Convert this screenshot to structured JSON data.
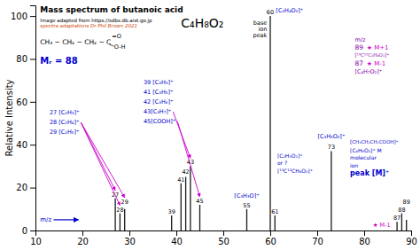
{
  "chart_data": {
    "type": "bar",
    "title": "Mass spectrum of butanoic acid",
    "ylabel": "Relative Intensity",
    "x": [
      27,
      28,
      29,
      39,
      41,
      42,
      43,
      45,
      55,
      60,
      61,
      73,
      87,
      88,
      89
    ],
    "values": [
      15,
      8,
      10,
      7,
      22,
      25,
      30,
      12,
      10,
      100,
      7,
      37,
      4,
      8,
      5
    ],
    "color": "#1a1a1a",
    "xlim": [
      10,
      90
    ],
    "ylim": [
      0,
      105
    ],
    "xticks": [
      10,
      20,
      30,
      40,
      50,
      60,
      70,
      80,
      90
    ],
    "yticks": [
      0,
      20,
      40,
      60,
      80,
      100
    ],
    "annotations": [
      {
        "text": "Image adapted from https://sdbs.db.aist.go.jp",
        "color": "black"
      },
      {
        "text": "spectra adaptations Dr Phil Brown 2021",
        "color": "#cc4400"
      },
      {
        "text": "C₄H₈O₂",
        "color": "black"
      },
      {
        "text": "CH₃ − CH₂ − CH₂ − C",
        "color": "black"
      },
      {
        "text": "=O",
        "color": "black"
      },
      {
        "text": "O-H",
        "color": "black"
      },
      {
        "text": "Mᵣ = 88",
        "color": "#0000cc"
      },
      {
        "text": "m/z",
        "color": "#0000cc"
      },
      {
        "text": "[C₂H₄O₂]⁺",
        "color": "#0000cc"
      },
      {
        "text": "base",
        "color": "black"
      },
      {
        "text": "ion",
        "color": "black"
      },
      {
        "text": "peak",
        "color": "black"
      },
      {
        "text": "27 [C₂H₃]⁺",
        "color": "#0000cc"
      },
      {
        "text": "28 [C₂H₄]⁺",
        "color": "#0000cc"
      },
      {
        "text": "29 [C₂H₅]⁺",
        "color": "#0000cc"
      },
      {
        "text": "39 [C₃H₃]⁺",
        "color": "#0000cc"
      },
      {
        "text": "41 [C₃H₅]⁺",
        "color": "#0000cc"
      },
      {
        "text": "42 [C₃H₆]⁺",
        "color": "#0000cc"
      },
      {
        "text": "43[C₃H₇]⁺",
        "color": "#0000cc"
      },
      {
        "text": "45[COOH]⁺",
        "color": "#0000cc"
      },
      {
        "text": "[C₃H₃O]⁺",
        "color": "#0000cc"
      },
      {
        "text": "[C₂H₅O₂]⁺",
        "color": "#0000cc"
      },
      {
        "text": "or ?",
        "color": "#0000cc"
      },
      {
        "text": "[¹³C¹²CH₄O₂]⁺",
        "color": "#0000cc"
      },
      {
        "text": "[C₃H₅O₂]⁺",
        "color": "#0000cc"
      },
      {
        "text": "m/z",
        "color": "#8800aa"
      },
      {
        "text": "89",
        "color": "#8800aa"
      },
      {
        "text": "★ M+1",
        "color": "#cc00cc"
      },
      {
        "text": "[¹³C¹²C₃H₈O₂]⁺",
        "color": "#8800aa"
      },
      {
        "text": "87",
        "color": "#8800aa"
      },
      {
        "text": "★ M-1",
        "color": "#cc00cc"
      },
      {
        "text": "[C₄H₇O₂]⁺",
        "color": "#8800aa"
      },
      {
        "text": "[CH₃CH₂CH₂COOH]⁺",
        "color": "#0000cc"
      },
      {
        "text": "[C₄H₈O₂]⁺ M",
        "color": "#0000cc"
      },
      {
        "text": "molecular",
        "color": "#0000cc"
      },
      {
        "text": "ion",
        "color": "#0000cc"
      },
      {
        "text": "peak [M]⁺",
        "color": "#0000cc"
      },
      {
        "text": "★ M-1",
        "color": "#cc00cc"
      }
    ]
  }
}
